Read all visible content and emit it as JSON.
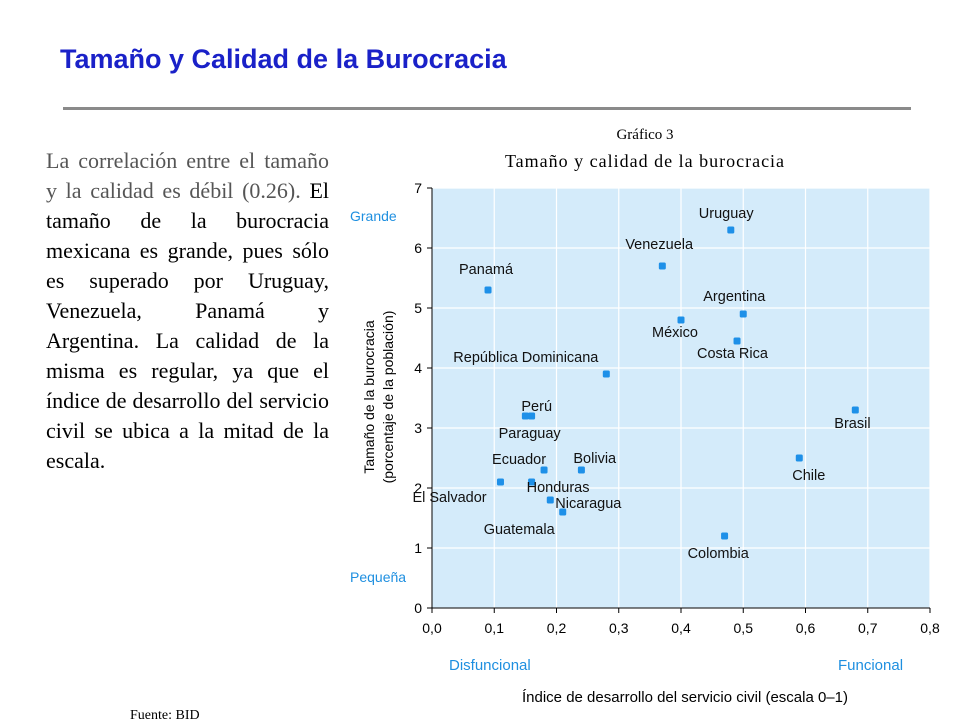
{
  "slide": {
    "title": "Tamaño y Calidad de la Burocracia",
    "body_part1": "La correlación entre el tamaño y la calidad es débil (0.26). ",
    "body_part2": "El tamaño de la burocracia mexicana es grande, pues sólo es superado por Uruguay, Venezuela, Panamá y Argentina. La calidad de la misma es regular, ya que el índice de desarrollo del servicio civil se ubica a la mitad de la escala.",
    "source_note": "Fuente: BID"
  },
  "chart_data": {
    "type": "scatter",
    "supertitle": "Gráfico 3",
    "title": "Tamaño y calidad de la burocracia",
    "xlabel": "Índice de desarrollo del servicio civil (escala 0–1)",
    "ylabel_line1": "Tamaño de la burocracia",
    "ylabel_line2": "(porcentaje de la población)",
    "xlim": [
      0,
      0.8
    ],
    "ylim": [
      0,
      7
    ],
    "xticks": [
      "0,0",
      "0,1",
      "0,2",
      "0,3",
      "0,4",
      "0,5",
      "0,6",
      "0,7",
      "0,8"
    ],
    "yticks": [
      "0",
      "1",
      "2",
      "3",
      "4",
      "5",
      "6",
      "7"
    ],
    "grid": true,
    "x_low_label": "Disfuncional",
    "x_high_label": "Funcional",
    "y_high_label": "Grande",
    "y_low_label": "Pequeña",
    "colors": {
      "point": "#1e90e8",
      "plot_bg": "#d4ebfa",
      "grid": "#ffffff",
      "accent_label": "#1e8fe0"
    },
    "points": [
      {
        "label": "Uruguay",
        "x": 0.48,
        "y": 6.3
      },
      {
        "label": "Venezuela",
        "x": 0.37,
        "y": 5.7
      },
      {
        "label": "Panamá",
        "x": 0.09,
        "y": 5.3
      },
      {
        "label": "Argentina",
        "x": 0.5,
        "y": 4.9
      },
      {
        "label": "México",
        "x": 0.4,
        "y": 4.8
      },
      {
        "label": "Costa Rica",
        "x": 0.49,
        "y": 4.45
      },
      {
        "label": "República Dominicana",
        "x": 0.28,
        "y": 3.9
      },
      {
        "label": "Perú",
        "x": 0.15,
        "y": 3.2
      },
      {
        "label": "Paraguay",
        "x": 0.16,
        "y": 3.2
      },
      {
        "label": "Brasil",
        "x": 0.68,
        "y": 3.3
      },
      {
        "label": "Chile",
        "x": 0.59,
        "y": 2.5
      },
      {
        "label": "Bolivia",
        "x": 0.24,
        "y": 2.3
      },
      {
        "label": "Ecuador",
        "x": 0.18,
        "y": 2.3
      },
      {
        "label": "El Salvador",
        "x": 0.11,
        "y": 2.1
      },
      {
        "label": "Honduras",
        "x": 0.16,
        "y": 2.1
      },
      {
        "label": "Nicaragua",
        "x": 0.19,
        "y": 1.8
      },
      {
        "label": "Guatemala",
        "x": 0.21,
        "y": 1.6
      },
      {
        "label": "Colombia",
        "x": 0.47,
        "y": 1.2
      }
    ]
  }
}
